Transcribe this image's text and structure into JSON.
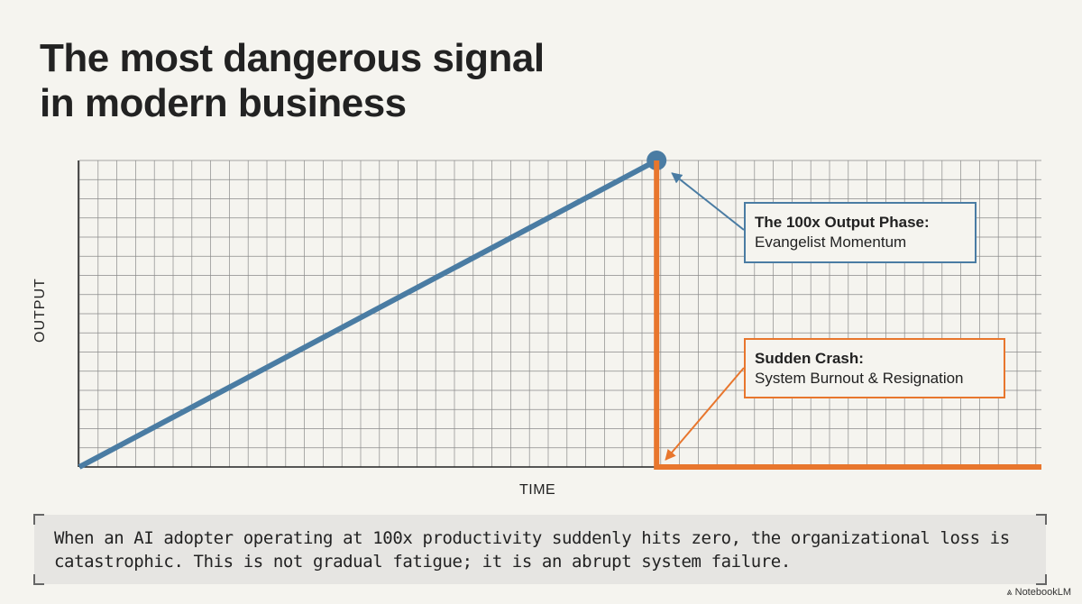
{
  "title_lines": [
    "The most dangerous signal",
    "in modern business"
  ],
  "chart_data": {
    "type": "line",
    "title": "",
    "xlabel": "TIME",
    "ylabel": "OUTPUT",
    "grid": true,
    "ticks": false,
    "series": [
      {
        "color": "#4a7ca3",
        "points": [
          [
            0,
            0
          ],
          [
            60,
            100
          ]
        ],
        "end_marker": "dot"
      },
      {
        "color": "#e8762d",
        "points": [
          [
            60,
            100
          ],
          [
            60,
            0
          ],
          [
            100,
            0
          ]
        ]
      }
    ],
    "xlim": [
      0,
      100
    ],
    "ylim": [
      0,
      100
    ],
    "annotations": [
      {
        "title": "The 100x Output Phase:",
        "text": "Evangelist Momentum",
        "color": "#4a7ca3",
        "points_to": [
          60,
          100
        ]
      },
      {
        "title": "Sudden Crash:",
        "text": "System Burnout & Resignation",
        "color": "#e8762d",
        "points_to": [
          60,
          0
        ]
      }
    ]
  },
  "caption": "When an AI adopter operating at 100x productivity suddenly hits zero, the organizational loss is catastrophic. This is not gradual fatigue; it is an abrupt system failure.",
  "brand": "NotebookLM"
}
